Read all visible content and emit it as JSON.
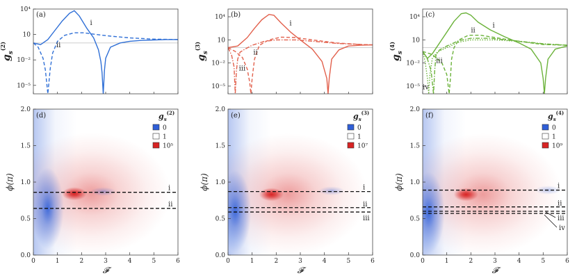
{
  "figure": {
    "colors": {
      "p1": "#2f6fd6",
      "p2": "#e2604c",
      "p3": "#6bb23a",
      "heat_low": "#2f5fd8",
      "heat_high": "#d82424"
    }
  },
  "chart_data": [
    {
      "panel": "(a)",
      "type": "line",
      "scale": "log-y",
      "ylabel": "g_s^(2)",
      "ylabel_main": "g",
      "ylabel_sub": "s",
      "ylabel_sup": "(2)",
      "xlim": [
        0,
        6
      ],
      "ylim_exp": [
        -6,
        4
      ],
      "yticks": [
        "10⁴",
        "10",
        "10⁻²",
        "10⁻⁵"
      ],
      "y_reference": 1,
      "series": [
        {
          "curve": "i",
          "style": "solid",
          "x": [
            0,
            0.3,
            0.6,
            0.9,
            1.2,
            1.5,
            1.7,
            1.9,
            2.2,
            2.5,
            2.7,
            2.8,
            2.85,
            2.9,
            2.95,
            3.0,
            3.2,
            3.6,
            4.0,
            4.5,
            5.0,
            5.5,
            6.0
          ],
          "log10": [
            0,
            -0.2,
            0.4,
            1.5,
            2.6,
            3.5,
            3.8,
            3.2,
            1.8,
            0.6,
            -0.8,
            -2.2,
            -3.5,
            -6,
            -3.2,
            -1.8,
            -0.5,
            0.0,
            0.2,
            0.3,
            0.35,
            0.4,
            0.4
          ]
        },
        {
          "curve": "ii",
          "style": "dashed",
          "x": [
            0,
            0.2,
            0.4,
            0.5,
            0.6,
            0.7,
            0.8,
            1.0,
            1.3,
            1.7,
            2.1,
            2.6,
            3.2,
            4.0,
            5.0,
            6.0
          ],
          "log10": [
            0,
            -0.5,
            -1.8,
            -3.2,
            -6,
            -3.0,
            -1.2,
            0.2,
            0.9,
            1.2,
            1.2,
            1.0,
            0.8,
            0.6,
            0.45,
            0.4
          ]
        }
      ],
      "labels": [
        {
          "text": "i",
          "x": 2.35,
          "log10": 2.1
        },
        {
          "text": "ii",
          "x": 0.95,
          "log10": -0.5
        }
      ]
    },
    {
      "panel": "(b)",
      "type": "line",
      "scale": "log-y",
      "ylabel": "g_s^(3)",
      "ylabel_main": "g",
      "ylabel_sub": "s",
      "ylabel_sup": "(3)",
      "xlim": [
        0,
        6
      ],
      "ylim_exp": [
        -6,
        5
      ],
      "yticks": [
        "10⁴",
        "10",
        "10⁻²",
        "10⁻⁵"
      ],
      "y_reference": 1,
      "series": [
        {
          "curve": "i",
          "style": "solid",
          "x": [
            0,
            0.4,
            0.8,
            1.1,
            1.4,
            1.7,
            1.9,
            2.2,
            2.6,
            3.0,
            3.5,
            3.9,
            4.1,
            4.15,
            4.2,
            4.3,
            4.6,
            5.0,
            5.5,
            6.0
          ],
          "log10": [
            0,
            0.2,
            1.3,
            2.5,
            3.6,
            4.3,
            4.2,
            3.2,
            2.0,
            1.0,
            -0.2,
            -1.8,
            -4,
            -6,
            -4,
            -1.5,
            -0.3,
            0.2,
            0.3,
            0.35
          ]
        },
        {
          "curve": "ii",
          "style": "dashed",
          "x": [
            0,
            0.3,
            0.6,
            0.8,
            0.9,
            0.95,
            1.0,
            1.1,
            1.3,
            1.7,
            2.2,
            2.8,
            3.5,
            4.5,
            5.5,
            6.0
          ],
          "log10": [
            0,
            -0.5,
            -1.3,
            -2.8,
            -4.5,
            -6,
            -4.0,
            -1.5,
            0.3,
            1.0,
            1.35,
            1.3,
            1.0,
            0.6,
            0.4,
            0.35
          ]
        },
        {
          "curve": "iii",
          "style": "dash-dot",
          "x": [
            0,
            0.15,
            0.25,
            0.3,
            0.35,
            0.4,
            0.5,
            0.7,
            1.0,
            1.5,
            2.0,
            2.8,
            3.6,
            4.5,
            5.5,
            6.0
          ],
          "log10": [
            0,
            -1.0,
            -2.5,
            -6,
            -3.0,
            -1.5,
            -0.6,
            -0.2,
            0.3,
            0.8,
            1.0,
            1.0,
            0.8,
            0.55,
            0.4,
            0.35
          ]
        }
      ],
      "labels": [
        {
          "text": "i",
          "x": 2.55,
          "log10": 2.9
        },
        {
          "text": "ii",
          "x": 1.05,
          "log10": -0.9
        },
        {
          "text": "iii",
          "x": 0.45,
          "log10": -3.0
        }
      ]
    },
    {
      "panel": "(c)",
      "type": "line",
      "scale": "log-y",
      "ylabel": "g_s^(4)",
      "ylabel_main": "g",
      "ylabel_sub": "s",
      "ylabel_sup": "(4)",
      "xlim": [
        0,
        6
      ],
      "ylim_exp": [
        -6,
        5
      ],
      "yticks": [
        "10⁴",
        "10",
        "10⁻²",
        "10⁻⁵"
      ],
      "y_reference": 1,
      "series": [
        {
          "curve": "i",
          "style": "solid",
          "x": [
            0,
            0.2,
            0.4,
            0.7,
            1.0,
            1.3,
            1.6,
            1.8,
            2.0,
            2.3,
            2.8,
            3.4,
            4.0,
            4.5,
            4.9,
            5.0,
            5.05,
            5.1,
            5.2,
            5.5,
            6.0
          ],
          "log10": [
            -0.5,
            -1.4,
            -0.8,
            0.6,
            2.0,
            3.4,
            4.4,
            4.5,
            4.2,
            3.3,
            2.3,
            1.4,
            0.6,
            -0.2,
            -2.0,
            -4,
            -6,
            -4,
            -1.5,
            -0.2,
            0.2
          ]
        },
        {
          "curve": "ii",
          "style": "dashed",
          "x": [
            0,
            0.4,
            0.8,
            1.0,
            1.1,
            1.15,
            1.2,
            1.3,
            1.5,
            1.9,
            2.4,
            3.0,
            4.0,
            5.0,
            6.0
          ],
          "log10": [
            -0.5,
            -0.9,
            -2.0,
            -3.5,
            -6,
            -4,
            -1.5,
            0.0,
            1.0,
            1.6,
            1.6,
            1.3,
            0.8,
            0.4,
            0.3
          ]
        },
        {
          "curve": "iii",
          "style": "dash-dot",
          "x": [
            0,
            0.2,
            0.35,
            0.45,
            0.5,
            0.55,
            0.7,
            1.0,
            1.5,
            2.0,
            2.8,
            3.8,
            5.0,
            6.0
          ],
          "log10": [
            -0.5,
            -1.5,
            -3.0,
            -6,
            -3.0,
            -1.0,
            -0.3,
            0.2,
            0.9,
            1.2,
            1.2,
            0.9,
            0.5,
            0.3
          ]
        },
        {
          "curve": "iv",
          "style": "dotted",
          "x": [
            0,
            0.1,
            0.2,
            0.25,
            0.3,
            0.4,
            0.6,
            1.0,
            1.5,
            2.0,
            3.0,
            4.0,
            5.0,
            6.0
          ],
          "log10": [
            -0.5,
            -1.8,
            -4.0,
            -6,
            -3.5,
            -1.4,
            -0.6,
            0.0,
            0.7,
            1.0,
            1.0,
            0.8,
            0.45,
            0.3
          ]
        }
      ],
      "labels": [
        {
          "text": "i",
          "x": 2.9,
          "log10": 2.6
        },
        {
          "text": "ii",
          "x": 2.0,
          "log10": 2.0
        },
        {
          "text": "iii",
          "x": 0.55,
          "log10": -2.0
        },
        {
          "text": "iv",
          "x": 0.0,
          "log10": -5.4
        }
      ]
    },
    {
      "panel": "(d)",
      "type": "heatmap",
      "xlabel": "𝓕",
      "ylabel": "ϕ(π)",
      "xlim": [
        0,
        6
      ],
      "ylim": [
        0,
        2
      ],
      "xticks": [
        0,
        1,
        2,
        3,
        4,
        5,
        6
      ],
      "yticks": [
        "0.0",
        "0.5",
        "1.0",
        "1.5",
        "2.0"
      ],
      "legend_title": "g_s^(2)",
      "legend_main": "g",
      "legend_sub": "s",
      "legend_sup": "(2)",
      "legend_position": "top-right",
      "legend": [
        {
          "text": "0",
          "color": "#2f5fd8"
        },
        {
          "text": "1",
          "color": "#ffffff"
        },
        {
          "text": "10⁵",
          "color": "#d82424"
        }
      ],
      "hot": {
        "x": 1.7,
        "phi": 0.84
      },
      "cold": [
        {
          "x": 0.6,
          "phi": 0.64,
          "strength": 1.0
        },
        {
          "x": 2.9,
          "phi": 0.87,
          "strength": 0.45
        }
      ],
      "cuts": [
        {
          "label": "i",
          "phi": 0.86
        },
        {
          "label": "ii",
          "phi": 0.64
        }
      ]
    },
    {
      "panel": "(e)",
      "type": "heatmap",
      "xlabel": "𝓕",
      "ylabel": "ϕ(π)",
      "xlim": [
        0,
        6
      ],
      "ylim": [
        0,
        2
      ],
      "xticks": [
        0,
        1,
        2,
        3,
        4,
        5,
        6
      ],
      "yticks": [
        "0.0",
        "0.5",
        "1.0",
        "1.5",
        "2.0"
      ],
      "legend_title": "g_s^(3)",
      "legend_main": "g",
      "legend_sub": "s",
      "legend_sup": "(3)",
      "legend_position": "top-right",
      "legend": [
        {
          "text": "0",
          "color": "#2f5fd8"
        },
        {
          "text": "1",
          "color": "#ffffff"
        },
        {
          "text": "10⁷",
          "color": "#d82424"
        }
      ],
      "hot": {
        "x": 1.8,
        "phi": 0.83
      },
      "cold": [
        {
          "x": 0.3,
          "phi": 0.6,
          "strength": 1.0
        },
        {
          "x": 4.3,
          "phi": 0.88,
          "strength": 0.45
        }
      ],
      "cuts": [
        {
          "label": "i",
          "phi": 0.87
        },
        {
          "label": "ii",
          "phi": 0.65
        },
        {
          "label": "iii",
          "phi": 0.59
        }
      ]
    },
    {
      "panel": "(f)",
      "type": "heatmap",
      "xlabel": "𝓕",
      "ylabel": "ϕ(π)",
      "xlim": [
        0,
        6
      ],
      "ylim": [
        0,
        2
      ],
      "xticks": [
        0,
        1,
        2,
        3,
        4,
        5,
        6
      ],
      "yticks": [
        "0.0",
        "0.5",
        "1.0",
        "1.5",
        "2.0"
      ],
      "legend_title": "g_s^(4)",
      "legend_main": "g",
      "legend_sub": "s",
      "legend_sup": "(4)",
      "legend_position": "top-right",
      "legend": [
        {
          "text": "0",
          "color": "#2f5fd8"
        },
        {
          "text": "1",
          "color": "#ffffff"
        },
        {
          "text": "10⁹",
          "color": "#d82424"
        }
      ],
      "hot": {
        "x": 1.8,
        "phi": 0.83
      },
      "cold": [
        {
          "x": 0.25,
          "phi": 0.58,
          "strength": 1.0
        },
        {
          "x": 5.2,
          "phi": 0.89,
          "strength": 0.4
        }
      ],
      "cuts": [
        {
          "label": "i",
          "phi": 0.89
        },
        {
          "label": "ii",
          "phi": 0.66
        },
        {
          "label": "iii",
          "phi": 0.6
        },
        {
          "label": "iv",
          "phi": 0.57
        }
      ]
    }
  ]
}
